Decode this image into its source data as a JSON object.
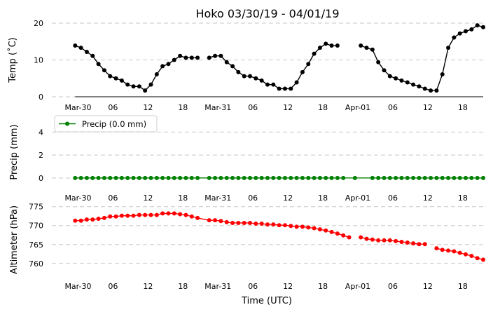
{
  "figure": {
    "title": "Hoko 03/30/19 - 04/01/19",
    "x_axis_label": "Time (UTC)",
    "x_tick_labels": [
      "Mar-30",
      "06",
      "12",
      "18",
      "Mar-31",
      "06",
      "12",
      "18",
      "Apr-01",
      "06",
      "12",
      "18"
    ],
    "x_tick_hours": [
      0,
      6,
      12,
      18,
      24,
      30,
      36,
      42,
      48,
      54,
      60,
      66
    ],
    "x_range_hours": [
      -4.5,
      69.5
    ]
  },
  "chart_data": [
    {
      "type": "line",
      "id": "temp",
      "ylabel": "Temp (˚C)",
      "ylim": [
        0,
        20
      ],
      "yticks": [
        0,
        10,
        20
      ],
      "color": "#000000",
      "grid": true,
      "x_hours": [
        -0.5,
        0.5,
        1.5,
        2.5,
        3.5,
        4.5,
        5.5,
        6.5,
        7.5,
        8.5,
        9.5,
        10.5,
        11.5,
        12.5,
        13.5,
        14.5,
        15.5,
        16.5,
        17.5,
        18.5,
        19.5,
        20.5,
        21.5,
        22.5,
        23.5,
        24.5,
        25.5,
        26.5,
        27.5,
        28.5,
        29.5,
        30.5,
        31.5,
        32.5,
        33.5,
        34.5,
        35.5,
        36.5,
        37.5,
        38.5,
        39.5,
        40.5,
        41.5,
        42.5,
        43.5,
        44.5,
        45.5,
        46.5,
        47.5,
        null,
        48.5,
        49.5,
        50.5,
        51.5,
        52.5,
        53.5,
        54.5,
        55.5,
        56.5,
        57.5,
        58.5,
        59.5,
        60.5,
        61.5,
        62.5,
        63.5,
        64.5,
        65.5,
        66.5,
        67.5,
        68.5,
        69.5
      ],
      "values": [
        13.9,
        13.3,
        12.2,
        11.1,
        8.9,
        7.2,
        5.6,
        5.0,
        4.4,
        3.3,
        2.8,
        2.8,
        1.7,
        3.3,
        6.1,
        8.3,
        8.9,
        10.0,
        11.1,
        10.6,
        10.6,
        10.6,
        null,
        10.6,
        11.1,
        11.1,
        9.4,
        8.3,
        6.7,
        5.6,
        5.6,
        5.0,
        4.4,
        3.3,
        3.3,
        2.2,
        2.2,
        2.2,
        3.9,
        6.7,
        8.9,
        11.7,
        13.3,
        14.4,
        13.9,
        13.9,
        null,
        null,
        null,
        null,
        13.9,
        13.3,
        12.8,
        9.4,
        7.2,
        5.6,
        5.0,
        4.4,
        3.9,
        3.3,
        2.8,
        2.2,
        1.7,
        1.7,
        6.1,
        13.3,
        16.1,
        17.2,
        17.8,
        18.3,
        19.4,
        18.9
      ]
    },
    {
      "type": "line",
      "id": "precip",
      "ylabel": "Precip (mm)",
      "ylim": [
        -0.5,
        5
      ],
      "yticks": [
        0,
        2,
        4
      ],
      "color": "#008000",
      "grid": true,
      "legend": {
        "label": "Precip (0.0 mm)",
        "position": "top-left"
      },
      "x_hours": [
        -0.5,
        0.5,
        1.5,
        2.5,
        3.5,
        4.5,
        5.5,
        6.5,
        7.5,
        8.5,
        9.5,
        10.5,
        11.5,
        12.5,
        13.5,
        14.5,
        15.5,
        16.5,
        17.5,
        18.5,
        19.5,
        20.5,
        22.5,
        23.5,
        24.5,
        25.5,
        26.5,
        27.5,
        28.5,
        29.5,
        30.5,
        31.5,
        32.5,
        33.5,
        34.5,
        35.5,
        36.5,
        37.5,
        38.5,
        39.5,
        40.5,
        41.5,
        42.5,
        43.5,
        44.5,
        45.5,
        47.5,
        50.5,
        51.5,
        52.5,
        53.5,
        54.5,
        55.5,
        56.5,
        57.5,
        58.5,
        59.5,
        60.5,
        61.5,
        62.5,
        63.5,
        64.5,
        65.5,
        66.5,
        67.5,
        68.5,
        69.5
      ],
      "values": [
        0,
        0,
        0,
        0,
        0,
        0,
        0,
        0,
        0,
        0,
        0,
        0,
        0,
        0,
        0,
        0,
        0,
        0,
        0,
        0,
        0,
        0,
        0,
        0,
        0,
        0,
        0,
        0,
        0,
        0,
        0,
        0,
        0,
        0,
        0,
        0,
        0,
        0,
        0,
        0,
        0,
        0,
        0,
        0,
        0,
        0,
        0,
        0,
        0,
        0,
        0,
        0,
        0,
        0,
        0,
        0,
        0,
        0,
        0,
        0,
        0,
        0,
        0,
        0,
        0,
        0,
        0
      ]
    },
    {
      "type": "line",
      "id": "altimeter",
      "ylabel": "Altimeter (hPa)",
      "ylim": [
        757,
        775.5
      ],
      "yticks": [
        760,
        765,
        770,
        775
      ],
      "color": "#ff0000",
      "grid": true,
      "x_hours": [
        -0.5,
        0.5,
        1.5,
        2.5,
        3.5,
        4.5,
        5.5,
        6.5,
        7.5,
        8.5,
        9.5,
        10.5,
        11.5,
        12.5,
        13.5,
        14.5,
        15.5,
        16.5,
        17.5,
        18.5,
        19.5,
        20.5,
        22.5,
        23.5,
        24.5,
        25.5,
        26.5,
        27.5,
        28.5,
        29.5,
        30.5,
        31.5,
        32.5,
        33.5,
        34.5,
        35.5,
        36.5,
        37.5,
        38.5,
        39.5,
        40.5,
        41.5,
        42.5,
        43.5,
        44.5,
        45.5,
        46.5,
        47.5,
        null,
        48.5,
        49.5,
        50.5,
        51.5,
        52.5,
        53.5,
        54.5,
        55.5,
        56.5,
        57.5,
        58.5,
        59.5,
        60.5,
        null,
        61.5,
        62.5,
        63.5,
        64.5,
        65.5,
        66.5,
        67.5,
        68.5,
        69.5
      ],
      "values": [
        771.3,
        771.3,
        771.6,
        771.6,
        771.8,
        772.0,
        772.4,
        772.4,
        772.6,
        772.6,
        772.6,
        772.8,
        772.8,
        772.8,
        772.8,
        773.2,
        773.2,
        773.2,
        773.0,
        772.8,
        772.4,
        772.0,
        771.4,
        771.4,
        771.2,
        770.9,
        770.7,
        770.7,
        770.7,
        770.7,
        770.5,
        770.5,
        770.3,
        770.3,
        770.1,
        770.1,
        769.9,
        769.7,
        769.7,
        769.5,
        769.3,
        769.0,
        768.7,
        768.3,
        767.9,
        767.4,
        766.9,
        null,
        null,
        766.9,
        766.5,
        766.3,
        766.1,
        766.1,
        766.1,
        765.9,
        765.7,
        765.5,
        765.3,
        765.1,
        765.1,
        null,
        null,
        764.0,
        763.6,
        763.4,
        763.2,
        762.8,
        762.4,
        762.0,
        761.4,
        761.0
      ]
    }
  ]
}
